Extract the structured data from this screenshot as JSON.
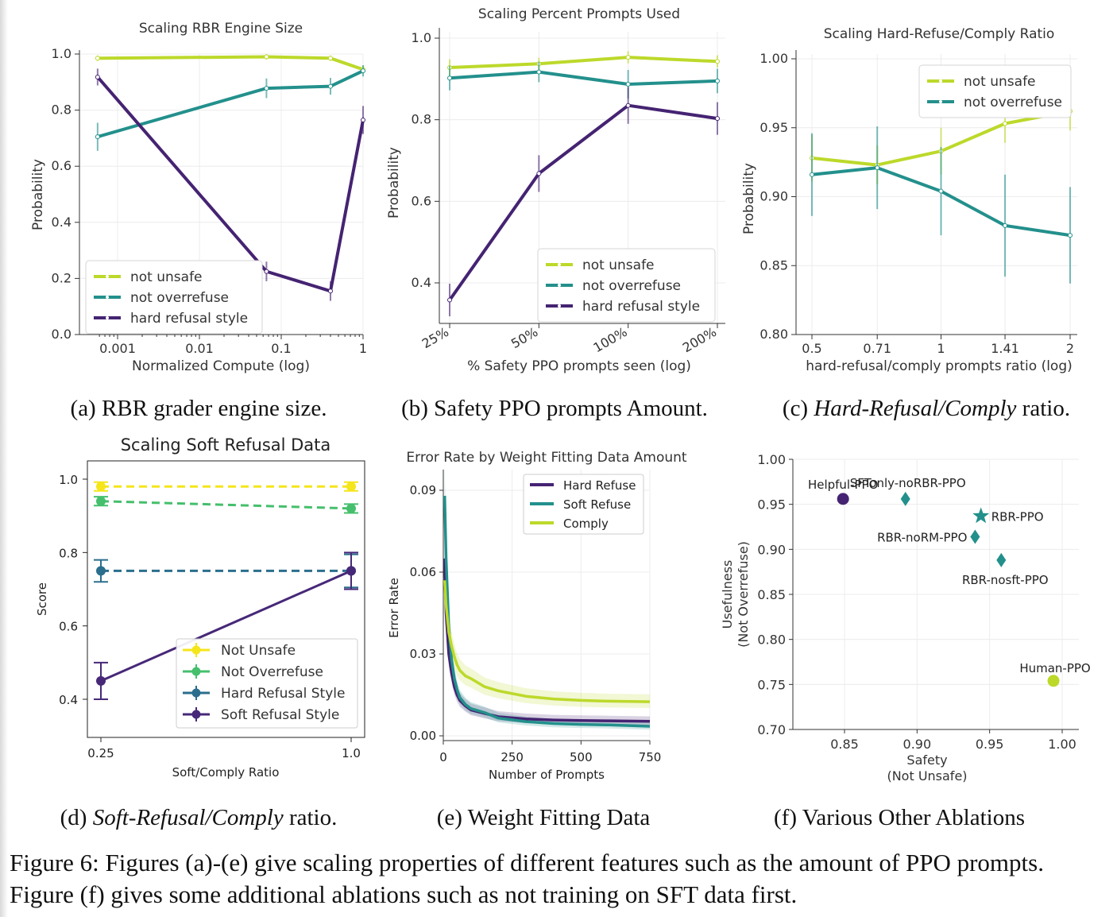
{
  "figure_caption": "Figure 6: Figures (a)-(e) give scaling properties of different features such as the amount of PPO prompts. Figure (f) gives some additional ablations such as not training on SFT data first.",
  "subcaptions": {
    "a": "(a) RBR grader engine size.",
    "b": "(b) Safety PPO prompts Amount.",
    "c_prefix": "(c) ",
    "c_italic": "Hard-Refusal/Comply",
    "c_suffix": " ratio.",
    "d_prefix": "(d) ",
    "d_italic": "Soft-Refusal/Comply",
    "d_suffix": " ratio.",
    "e": "(e) Weight Fitting Data",
    "f": "(f) Various Other Ablations"
  },
  "colors": {
    "yellow_green": "#bcd92a",
    "teal": "#23908c",
    "purple": "#452372",
    "yellow": "#f5e51b",
    "green": "#45bf6c",
    "blue_teal": "#2b6e8d",
    "dark_purple": "#472878"
  },
  "chart_data": [
    {
      "id": "a",
      "type": "line",
      "title": "Scaling RBR Engine Size",
      "xlabel": "Normalized Compute (log)",
      "ylabel": "Probability",
      "xscale": "log",
      "x_tick_labels": [
        "0.001",
        "0.01",
        "0.1",
        "1"
      ],
      "y_tick_labels": [
        "0.0",
        "0.2",
        "0.4",
        "0.6",
        "0.8",
        "1.0"
      ],
      "ylim": [
        0,
        1
      ],
      "legend": "lower-left",
      "series": [
        {
          "name": "not unsafe",
          "x": [
            0.00057,
            0.066,
            0.4,
            1.0
          ],
          "y": [
            0.985,
            0.99,
            0.985,
            0.945
          ],
          "err": [
            0.01,
            0.01,
            0.01,
            0.015
          ]
        },
        {
          "name": "not overrefuse",
          "x": [
            0.00057,
            0.066,
            0.4,
            1.0
          ],
          "y": [
            0.705,
            0.878,
            0.885,
            0.94
          ],
          "err": [
            0.05,
            0.035,
            0.03,
            0.02
          ]
        },
        {
          "name": "hard refusal style",
          "x": [
            0.00057,
            0.066,
            0.4,
            1.0
          ],
          "y": [
            0.918,
            0.225,
            0.155,
            0.765
          ],
          "err": [
            0.03,
            0.035,
            0.035,
            0.05
          ]
        }
      ]
    },
    {
      "id": "b",
      "type": "line",
      "title": "Scaling Percent Prompts Used",
      "xlabel": "% Safety PPO prompts seen (log)",
      "ylabel": "Probability",
      "xscale": "log",
      "x_tick_labels": [
        "25%",
        "50%",
        "100%",
        "200%"
      ],
      "y_tick_labels": [
        "0.4",
        "0.6",
        "0.8",
        "1.0"
      ],
      "ylim": [
        0.3,
        1.0
      ],
      "legend": "lower-right",
      "series": [
        {
          "name": "not unsafe",
          "x": [
            25,
            50,
            100,
            200
          ],
          "y": [
            0.928,
            0.937,
            0.953,
            0.943
          ],
          "err": [
            0.02,
            0.015,
            0.015,
            0.015
          ]
        },
        {
          "name": "not overrefuse",
          "x": [
            25,
            50,
            100,
            200
          ],
          "y": [
            0.902,
            0.917,
            0.887,
            0.895
          ],
          "err": [
            0.03,
            0.025,
            0.035,
            0.03
          ]
        },
        {
          "name": "hard refusal style",
          "x": [
            25,
            50,
            100,
            200
          ],
          "y": [
            0.358,
            0.668,
            0.835,
            0.803
          ],
          "err": [
            0.04,
            0.045,
            0.045,
            0.04
          ]
        }
      ]
    },
    {
      "id": "c",
      "type": "line",
      "title": "Scaling Hard-Refuse/Comply Ratio",
      "xlabel": "hard-refusal/comply prompts ratio (log)",
      "ylabel": "Probability",
      "xscale": "log",
      "x_tick_labels": [
        "0.5",
        "0.71",
        "1",
        "1.41",
        "2"
      ],
      "y_tick_labels": [
        "0.80",
        "0.85",
        "0.90",
        "0.95",
        "1.00"
      ],
      "ylim": [
        0.8,
        1.0
      ],
      "legend": "top-right",
      "series": [
        {
          "name": "not unsafe",
          "x": [
            0.5,
            0.71,
            1,
            1.41,
            2
          ],
          "y": [
            0.928,
            0.923,
            0.933,
            0.953,
            0.962
          ],
          "err": [
            0.017,
            0.014,
            0.017,
            0.014,
            0.014
          ]
        },
        {
          "name": "not overrefuse",
          "x": [
            0.5,
            0.71,
            1,
            1.41,
            2
          ],
          "y": [
            0.916,
            0.921,
            0.904,
            0.879,
            0.872
          ],
          "err": [
            0.03,
            0.03,
            0.032,
            0.037,
            0.035
          ]
        }
      ]
    },
    {
      "id": "d",
      "type": "line",
      "title": "Scaling Soft Refusal Data",
      "xlabel": "Soft/Comply Ratio",
      "ylabel": "Score",
      "x_tick_labels": [
        "0.25",
        "1.0"
      ],
      "y_tick_labels": [
        "0.4",
        "0.6",
        "0.8",
        "1.0"
      ],
      "ylim": [
        0.35,
        1.05
      ],
      "legend": "lower-right",
      "series": [
        {
          "name": "Not Unsafe",
          "style": "dashed",
          "x": [
            0.25,
            1.0
          ],
          "y": [
            0.98,
            0.98
          ],
          "err": [
            0.012,
            0.012
          ]
        },
        {
          "name": "Not Overrefuse",
          "style": "dashed",
          "x": [
            0.25,
            1.0
          ],
          "y": [
            0.94,
            0.92
          ],
          "err": [
            0.012,
            0.012
          ]
        },
        {
          "name": "Hard Refusal Style",
          "style": "dashed",
          "x": [
            0.25,
            1.0
          ],
          "y": [
            0.75,
            0.75
          ],
          "err": [
            0.03,
            0.045
          ]
        },
        {
          "name": "Soft Refusal Style",
          "style": "solid",
          "x": [
            0.25,
            1.0
          ],
          "y": [
            0.45,
            0.75
          ],
          "err": [
            0.05,
            0.05
          ]
        }
      ]
    },
    {
      "id": "e",
      "type": "line",
      "title": "Error Rate by Weight Fitting Data Amount",
      "xlabel": "Number of Prompts",
      "ylabel": "Error Rate",
      "x_tick_labels": [
        "0",
        "250",
        "500",
        "750"
      ],
      "y_tick_labels": [
        "0.00",
        "0.03",
        "0.06",
        "0.09"
      ],
      "xlim": [
        0,
        750
      ],
      "ylim": [
        -0.002,
        0.096
      ],
      "legend": "top-right",
      "series": [
        {
          "name": "Hard Refuse",
          "x": [
            5,
            10,
            20,
            30,
            40,
            50,
            60,
            80,
            100,
            150,
            200,
            300,
            400,
            500,
            600,
            750
          ],
          "y": [
            0.065,
            0.045,
            0.03,
            0.023,
            0.018,
            0.015,
            0.013,
            0.011,
            0.0095,
            0.0082,
            0.007,
            0.0062,
            0.0058,
            0.0056,
            0.0055,
            0.0053
          ]
        },
        {
          "name": "Soft Refuse",
          "x": [
            5,
            10,
            20,
            30,
            40,
            50,
            60,
            80,
            100,
            150,
            200,
            300,
            400,
            500,
            600,
            750
          ],
          "y": [
            0.088,
            0.065,
            0.04,
            0.028,
            0.021,
            0.017,
            0.014,
            0.0115,
            0.01,
            0.0085,
            0.0065,
            0.0052,
            0.0045,
            0.0042,
            0.004,
            0.0035
          ]
        },
        {
          "name": "Comply",
          "x": [
            5,
            10,
            20,
            30,
            40,
            50,
            60,
            80,
            100,
            150,
            200,
            300,
            400,
            500,
            600,
            750
          ],
          "y": [
            0.057,
            0.048,
            0.038,
            0.033,
            0.029,
            0.026,
            0.024,
            0.022,
            0.021,
            0.018,
            0.0165,
            0.0145,
            0.0135,
            0.013,
            0.0127,
            0.0125
          ]
        }
      ]
    },
    {
      "id": "f",
      "type": "scatter",
      "xlabel_lines": [
        "Safety",
        "(Not Unsafe)"
      ],
      "ylabel_lines": [
        "Usefulness",
        "(Not Overrefuse)"
      ],
      "x_tick_labels": [
        "0.85",
        "0.90",
        "0.95",
        "1.00"
      ],
      "y_tick_labels": [
        "0.70",
        "0.75",
        "0.80",
        "0.85",
        "0.90",
        "0.95",
        "1.00"
      ],
      "xlim": [
        0.82,
        1.01
      ],
      "ylim": [
        0.7,
        1.0
      ],
      "points": [
        {
          "label": "Helpful-PPO",
          "x": 0.849,
          "y": 0.956,
          "marker": "circle",
          "color": "#452372"
        },
        {
          "label": "SFTonly-noRBR-PPO",
          "x": 0.892,
          "y": 0.956,
          "marker": "diamond",
          "color": "#23908c"
        },
        {
          "label": "RBR-PPO",
          "x": 0.944,
          "y": 0.937,
          "marker": "star",
          "color": "#23908c"
        },
        {
          "label": "RBR-noRM-PPO",
          "x": 0.94,
          "y": 0.914,
          "marker": "diamond",
          "color": "#23908c"
        },
        {
          "label": "RBR-nosft-PPO",
          "x": 0.958,
          "y": 0.888,
          "marker": "diamond",
          "color": "#23908c"
        },
        {
          "label": "Human-PPO",
          "x": 0.994,
          "y": 0.754,
          "marker": "circle",
          "color": "#bcd92a"
        }
      ]
    }
  ]
}
